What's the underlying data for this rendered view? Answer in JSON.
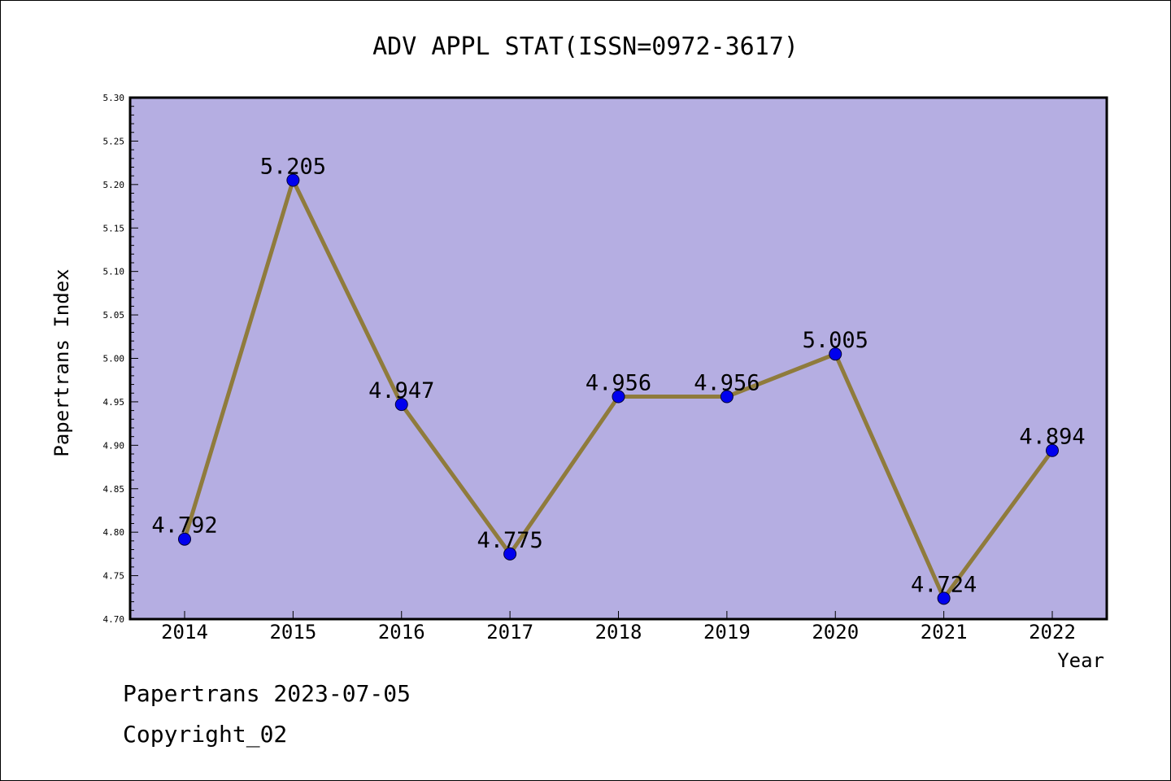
{
  "chart_data": {
    "type": "line",
    "title": "ADV APPL STAT(ISSN=0972-3617)",
    "xlabel": "Year",
    "ylabel": "Papertrans Index",
    "categories": [
      "2014",
      "2015",
      "2016",
      "2017",
      "2018",
      "2019",
      "2020",
      "2021",
      "2022"
    ],
    "series": [
      {
        "values": [
          4.792,
          5.205,
          4.947,
          4.775,
          4.956,
          4.956,
          5.005,
          4.724,
          4.894
        ],
        "labels": [
          "4.792",
          "5.205",
          "4.947",
          "4.775",
          "4.956",
          "4.956",
          "5.005",
          "4.724",
          "4.894"
        ]
      }
    ],
    "ylim": [
      4.7,
      5.3
    ],
    "yticks": [
      "4.70",
      "4.75",
      "4.80",
      "4.85",
      "4.90",
      "4.95",
      "5.00",
      "5.05",
      "5.10",
      "5.15",
      "5.20",
      "5.25",
      "5.30"
    ],
    "grid": false,
    "legend": "none",
    "colors": {
      "plot_background": "#b5aee2",
      "line": "#8f7b3c",
      "marker": "#0000ee"
    }
  },
  "footer": {
    "line1": "Papertrans 2023-07-05",
    "line2": "Copyright_02"
  }
}
